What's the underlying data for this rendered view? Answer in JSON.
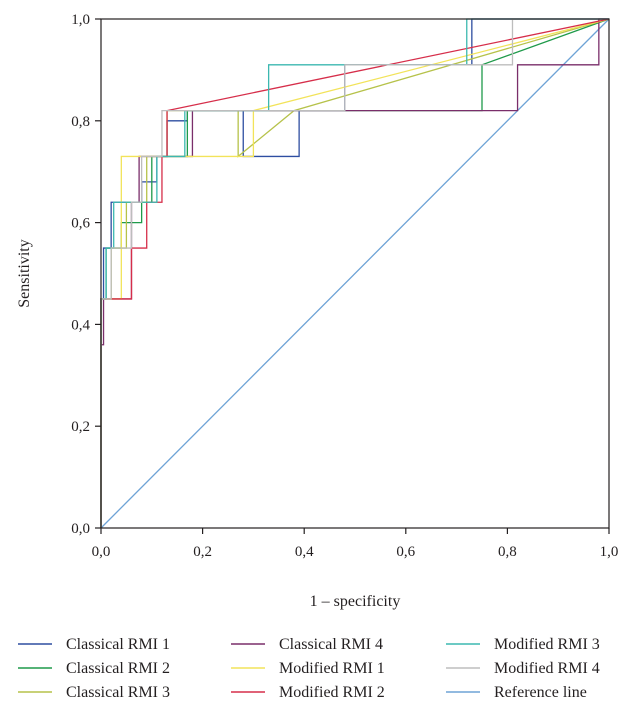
{
  "chart_data": {
    "type": "line",
    "xlabel": "1 – specificity",
    "ylabel": "Sensitivity",
    "xlim": [
      0,
      1
    ],
    "ylim": [
      0,
      1
    ],
    "xticks": [
      "0,0",
      "0,2",
      "0,4",
      "0,6",
      "0,8",
      "1,0"
    ],
    "yticks": [
      "0,0",
      "0,2",
      "0,4",
      "0,6",
      "0,8",
      "1,0"
    ],
    "legend_position": "bottom",
    "series": [
      {
        "name": "Classical RMI 1",
        "color": "#2e4ea1",
        "x": [
          0,
          0,
          0.005,
          0.005,
          0.02,
          0.02,
          0.08,
          0.08,
          0.11,
          0.11,
          0.13,
          0.13,
          0.17,
          0.17,
          0.28,
          0.28,
          0.39,
          0.39,
          0.48,
          0.48,
          0.73,
          0.73,
          1
        ],
        "y": [
          0,
          0.45,
          0.45,
          0.55,
          0.55,
          0.64,
          0.64,
          0.68,
          0.68,
          0.73,
          0.73,
          0.8,
          0.8,
          0.82,
          0.82,
          0.73,
          0.73,
          0.82,
          0.82,
          0.91,
          0.91,
          1,
          1
        ]
      },
      {
        "name": "Classical RMI 2",
        "color": "#1f9a4a",
        "x": [
          0,
          0,
          0.01,
          0.01,
          0.04,
          0.04,
          0.08,
          0.08,
          0.1,
          0.1,
          0.12,
          0.12,
          0.17,
          0.17,
          0.26,
          0.26,
          0.33,
          0.33,
          0.75,
          0.75,
          1
        ],
        "y": [
          0,
          0.45,
          0.45,
          0.55,
          0.55,
          0.6,
          0.6,
          0.64,
          0.64,
          0.73,
          0.73,
          0.73,
          0.73,
          0.82,
          0.82,
          0.82,
          0.82,
          0.82,
          0.82,
          0.91,
          1
        ]
      },
      {
        "name": "Classical RMI 3",
        "color": "#b6c24a",
        "x": [
          0,
          0,
          0.02,
          0.02,
          0.05,
          0.05,
          0.09,
          0.09,
          0.13,
          0.13,
          0.27,
          0.27,
          0.38,
          1
        ],
        "y": [
          0,
          0.45,
          0.45,
          0.55,
          0.55,
          0.64,
          0.64,
          0.73,
          0.73,
          0.82,
          0.82,
          0.73,
          0.82,
          1
        ]
      },
      {
        "name": "Classical RMI 4",
        "color": "#7a2e6a",
        "x": [
          0,
          0,
          0.005,
          0.005,
          0.06,
          0.06,
          0.075,
          0.075,
          0.09,
          0.09,
          0.18,
          0.18,
          0.82,
          0.82,
          0.98,
          0.98,
          1
        ],
        "y": [
          0,
          0.36,
          0.36,
          0.45,
          0.45,
          0.64,
          0.64,
          0.73,
          0.73,
          0.73,
          0.73,
          0.82,
          0.82,
          0.91,
          0.91,
          1,
          1
        ]
      },
      {
        "name": "Modified RMI 1",
        "color": "#f2e35a",
        "x": [
          0,
          0,
          0.04,
          0.04,
          0.2,
          0.2,
          0.3,
          0.3,
          1
        ],
        "y": [
          0,
          0.45,
          0.45,
          0.73,
          0.73,
          0.73,
          0.73,
          0.82,
          1
        ]
      },
      {
        "name": "Modified RMI 2",
        "color": "#d62e4a",
        "x": [
          0,
          0,
          0.06,
          0.06,
          0.09,
          0.09,
          0.12,
          0.12,
          0.13,
          0.13,
          1
        ],
        "y": [
          0,
          0.45,
          0.45,
          0.55,
          0.55,
          0.64,
          0.64,
          0.73,
          0.73,
          0.82,
          1
        ]
      },
      {
        "name": "Modified RMI 3",
        "color": "#3cb8b0",
        "x": [
          0,
          0,
          0.01,
          0.01,
          0.025,
          0.025,
          0.07,
          0.07,
          0.11,
          0.11,
          0.165,
          0.165,
          0.33,
          0.33,
          0.72,
          0.72,
          0.8,
          1
        ],
        "y": [
          0,
          0.45,
          0.45,
          0.55,
          0.55,
          0.64,
          0.64,
          0.64,
          0.64,
          0.73,
          0.73,
          0.82,
          0.82,
          0.91,
          0.91,
          1,
          1,
          1
        ]
      },
      {
        "name": "Modified RMI 4",
        "color": "#bdbdbd",
        "x": [
          0,
          0,
          0.02,
          0.02,
          0.06,
          0.06,
          0.08,
          0.08,
          0.12,
          0.12,
          0.48,
          0.48,
          0.81,
          0.81,
          1
        ],
        "y": [
          0,
          0.45,
          0.45,
          0.55,
          0.55,
          0.64,
          0.64,
          0.73,
          0.73,
          0.82,
          0.82,
          0.91,
          0.91,
          1,
          1
        ]
      },
      {
        "name": "Reference line",
        "color": "#6ea3d6",
        "x": [
          0,
          1
        ],
        "y": [
          0,
          1
        ]
      }
    ]
  }
}
